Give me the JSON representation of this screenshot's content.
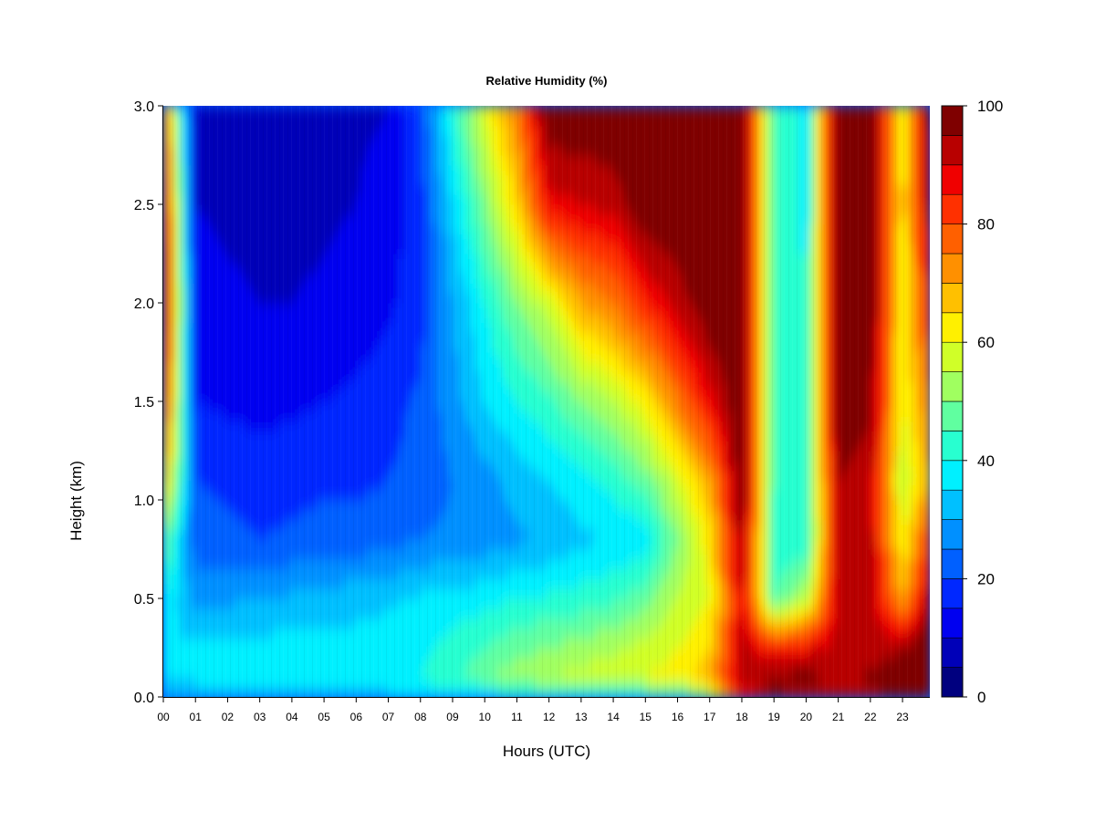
{
  "chart_data": {
    "type": "heatmap",
    "title": "Relative Humidity (%)",
    "xlabel": "Hours (UTC)",
    "ylabel": "Height (km)",
    "x_ticks": [
      "00",
      "01",
      "02",
      "03",
      "04",
      "05",
      "06",
      "07",
      "08",
      "09",
      "10",
      "11",
      "12",
      "13",
      "14",
      "15",
      "16",
      "17",
      "18",
      "19",
      "20",
      "21",
      "22",
      "23"
    ],
    "x_range": [
      0,
      23.85
    ],
    "y_ticks": [
      0.0,
      0.5,
      1.0,
      1.5,
      2.0,
      2.5,
      3.0
    ],
    "y_tick_labels": [
      "0.0",
      "0.5",
      "1.0",
      "1.5",
      "2.0",
      "2.5",
      "3.0"
    ],
    "y_range": [
      0,
      3.0
    ],
    "colorbar": {
      "range": [
        0,
        100
      ],
      "step": 5,
      "tick_values": [
        0,
        20,
        40,
        60,
        80,
        100
      ],
      "tick_labels": [
        "0",
        "20",
        "40",
        "60",
        "80",
        "100"
      ],
      "colors": [
        "#00007F",
        "#0000B8",
        "#0000F0",
        "#0028FF",
        "#0060FF",
        "#0090FF",
        "#00C0FF",
        "#00F0FF",
        "#28FFD0",
        "#60FFA0",
        "#A0FF60",
        "#D0FF28",
        "#FFF000",
        "#FFC000",
        "#FF9000",
        "#FF6000",
        "#FF3000",
        "#F00000",
        "#B80000",
        "#7F0000"
      ]
    },
    "x_hours": [
      0,
      1,
      2,
      3,
      4,
      5,
      6,
      7,
      8,
      9,
      10,
      11,
      12,
      13,
      14,
      15,
      16,
      17,
      18,
      19,
      20,
      21,
      22,
      23,
      23.85
    ],
    "y_heights_km": [
      0.0,
      0.1,
      0.25,
      0.5,
      0.8,
      1.1,
      1.5,
      2.0,
      2.5,
      3.0
    ],
    "rh_values_percent": [
      [
        30,
        35,
        35,
        40,
        50,
        70,
        85,
        95,
        90,
        80
      ],
      [
        32,
        36,
        36,
        28,
        22,
        20,
        15,
        12,
        10,
        8
      ],
      [
        34,
        37,
        37,
        29,
        21,
        19,
        14,
        11,
        9,
        7
      ],
      [
        33,
        37,
        37,
        30,
        20,
        18,
        13,
        10,
        8,
        7
      ],
      [
        32,
        37,
        37,
        31,
        21,
        18,
        14,
        10,
        8,
        7
      ],
      [
        32,
        37,
        37,
        32,
        22,
        19,
        15,
        11,
        9,
        8
      ],
      [
        33,
        38,
        37,
        33,
        22,
        19,
        16,
        12,
        10,
        9
      ],
      [
        34,
        38,
        38,
        34,
        23,
        20,
        18,
        14,
        12,
        10
      ],
      [
        35,
        40,
        39,
        36,
        25,
        22,
        21,
        18,
        18,
        20
      ],
      [
        36,
        44,
        42,
        37,
        26,
        25,
        28,
        30,
        35,
        42
      ],
      [
        36,
        49,
        45,
        38,
        27,
        28,
        35,
        40,
        50,
        60
      ],
      [
        37,
        53,
        48,
        40,
        29,
        32,
        40,
        50,
        65,
        75
      ],
      [
        38,
        55,
        50,
        41,
        31,
        35,
        44,
        58,
        88,
        100
      ],
      [
        38,
        57,
        52,
        42,
        34,
        38,
        50,
        70,
        90,
        100
      ],
      [
        39,
        58,
        54,
        44,
        35,
        42,
        55,
        75,
        92,
        100
      ],
      [
        40,
        60,
        57,
        48,
        37,
        48,
        62,
        85,
        100,
        100
      ],
      [
        42,
        62,
        60,
        55,
        50,
        58,
        75,
        92,
        100,
        100
      ],
      [
        52,
        70,
        65,
        60,
        63,
        70,
        88,
        100,
        100,
        100
      ],
      [
        85,
        95,
        92,
        90,
        95,
        100,
        100,
        100,
        100,
        100
      ],
      [
        95,
        96,
        85,
        45,
        42,
        45,
        45,
        45,
        45,
        45
      ],
      [
        93,
        97,
        88,
        55,
        40,
        42,
        40,
        40,
        38,
        38
      ],
      [
        92,
        94,
        92,
        92,
        95,
        95,
        100,
        100,
        100,
        100
      ],
      [
        94,
        96,
        93,
        93,
        92,
        92,
        96,
        100,
        100,
        100
      ],
      [
        96,
        98,
        95,
        70,
        60,
        55,
        60,
        60,
        62,
        60
      ],
      [
        100,
        100,
        100,
        95,
        85,
        70,
        75,
        85,
        95,
        100
      ]
    ]
  }
}
